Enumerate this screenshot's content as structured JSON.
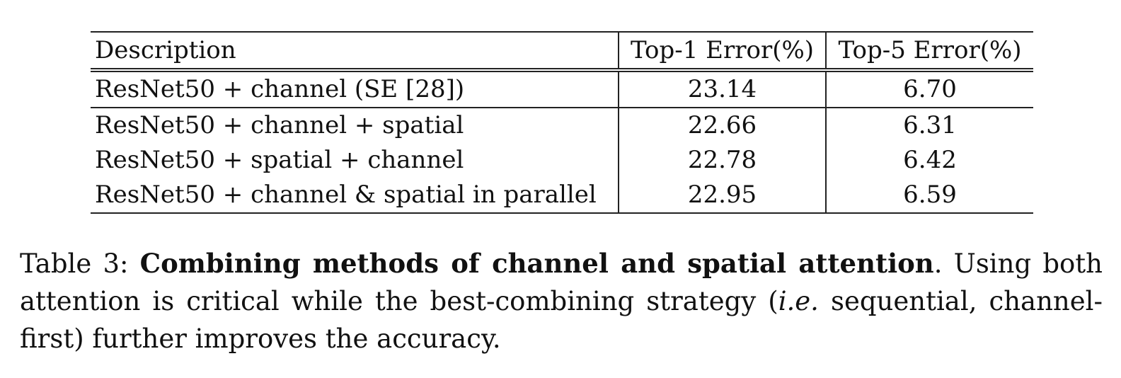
{
  "table": {
    "headers": [
      "Description",
      "Top-1 Error(%)",
      "Top-5 Error(%)"
    ],
    "rows": [
      {
        "description": "ResNet50 + channel (SE [28])",
        "top1": "23.14",
        "top5": "6.70",
        "bold": false
      },
      {
        "description": "ResNet50 + channel + spatial",
        "top1": "22.66",
        "top5": "6.31",
        "bold": true
      },
      {
        "description": "ResNet50 + spatial + channel",
        "top1": "22.78",
        "top5": "6.42",
        "bold": false
      },
      {
        "description": "ResNet50 + channel & spatial in parallel",
        "top1": "22.95",
        "top5": "6.59",
        "bold": false
      }
    ]
  },
  "caption": {
    "label": "Table 3:",
    "title": "Combining methods of channel and spatial attention",
    "text_1": ". Using both attention is critical while the best-combining strategy (",
    "ie": "i.e.",
    "text_2": " sequential, channel-first) further improves the accuracy."
  }
}
